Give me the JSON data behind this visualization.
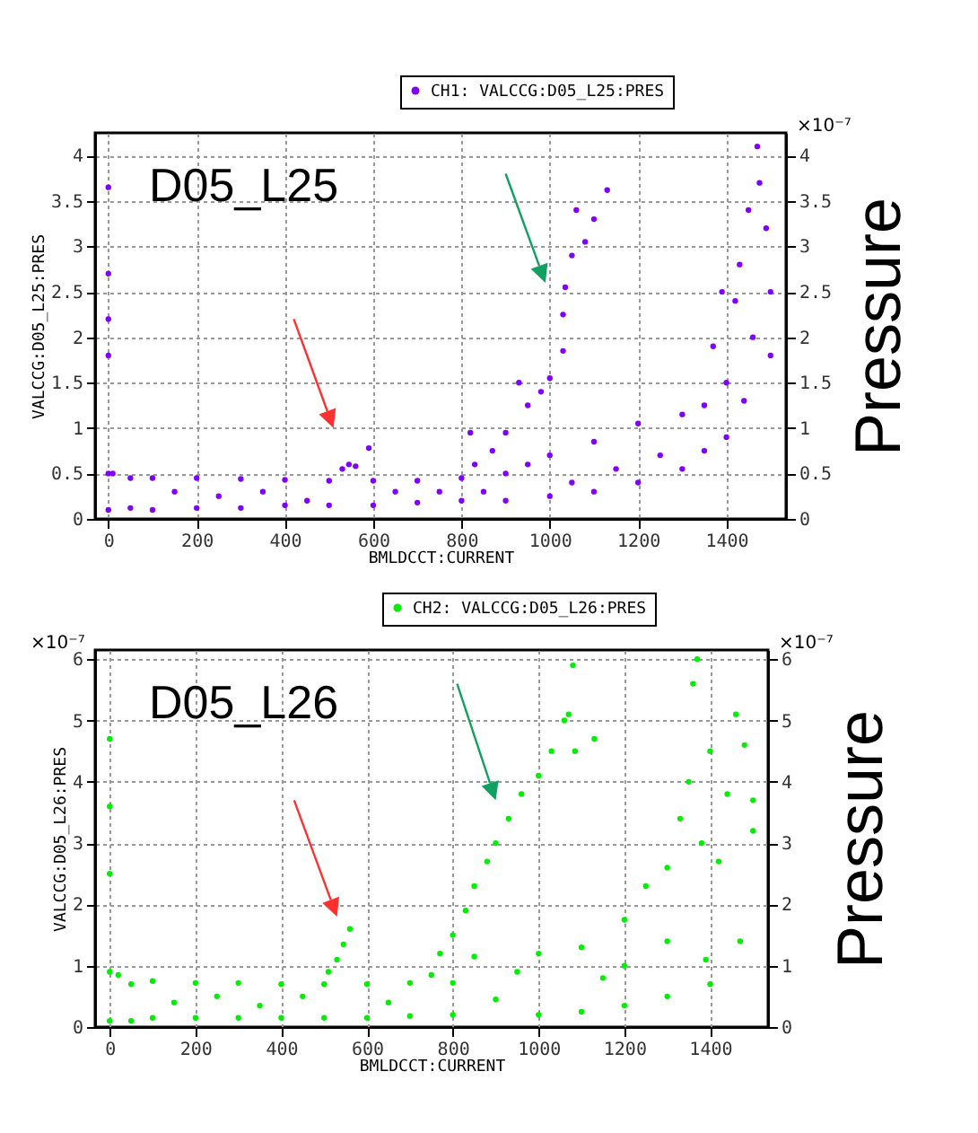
{
  "chart_data": [
    {
      "type": "scatter",
      "xlabel": "BMLDCCT:CURRENT",
      "ylabel": "VALCCG:D05_L25:PRES",
      "y2label": "Pressure",
      "annotations": [
        "D05_L25",
        "×10⁻⁷"
      ],
      "xlim": [
        -30,
        1535
      ],
      "xticks": [
        0,
        200,
        400,
        600,
        800,
        1000,
        1200,
        1400
      ],
      "ylim": [
        0,
        4.25
      ],
      "yticks": [
        0,
        0.5,
        1,
        1.5,
        2,
        2.5,
        3,
        3.5,
        4
      ],
      "y2lim": [
        0,
        4.25
      ],
      "y2ticks": [
        0,
        0.5,
        1,
        1.5,
        2,
        2.5,
        3,
        3.5,
        4
      ],
      "grid": true,
      "legend": "top right",
      "marker": "circle",
      "series": [
        {
          "name": "CH1: VALCCG:D05_L25:PRES",
          "color": "#8000ff",
          "x": [
            0,
            0,
            0,
            0,
            0,
            0,
            10,
            50,
            50,
            100,
            100,
            150,
            200,
            200,
            250,
            300,
            300,
            350,
            400,
            400,
            450,
            500,
            500,
            530,
            545,
            560,
            590,
            600,
            600,
            650,
            700,
            700,
            750,
            800,
            800,
            850,
            900,
            900,
            950,
            1000,
            1000,
            1050,
            1100,
            1100,
            1150,
            1200,
            1200,
            1250,
            1300,
            1300,
            1350,
            1350,
            1370,
            1390,
            1400,
            1400,
            1420,
            1430,
            1440,
            1450,
            1460,
            1470,
            1475,
            1490,
            1500,
            1500,
            820,
            830,
            870,
            900,
            930,
            950,
            980,
            1000,
            1030,
            1035,
            1050,
            1060,
            1080,
            1100,
            1130,
            1030
          ],
          "values": [
            0.1,
            0.5,
            1.8,
            3.65,
            2.7,
            2.2,
            0.5,
            0.45,
            0.12,
            0.45,
            0.1,
            0.3,
            0.45,
            0.12,
            0.25,
            0.44,
            0.12,
            0.3,
            0.43,
            0.15,
            0.2,
            0.42,
            0.15,
            0.55,
            0.6,
            0.58,
            0.78,
            0.42,
            0.15,
            0.3,
            0.42,
            0.18,
            0.3,
            0.45,
            0.2,
            0.3,
            0.5,
            0.2,
            0.6,
            0.7,
            0.25,
            0.4,
            0.85,
            0.3,
            0.55,
            1.05,
            0.4,
            0.7,
            1.15,
            0.55,
            1.25,
            0.75,
            1.9,
            2.5,
            1.5,
            0.9,
            2.4,
            2.8,
            1.3,
            3.4,
            2,
            4.1,
            3.7,
            3.2,
            2.5,
            1.8,
            0.95,
            0.6,
            0.75,
            0.95,
            1.5,
            1.25,
            1.4,
            1.55,
            1.85,
            2.55,
            2.9,
            3.4,
            3.05,
            3.3,
            3.62,
            2.25
          ]
        }
      ]
    },
    {
      "type": "scatter",
      "xlabel": "BMLDCCT:CURRENT",
      "ylabel": "VALCCG:D05_L26:PRES",
      "y2label": "Pressure",
      "annotations": [
        "D05_L26",
        "×10⁻⁷",
        "×10⁻⁷"
      ],
      "xlim": [
        -34,
        1535
      ],
      "xticks": [
        0,
        200,
        400,
        600,
        800,
        1000,
        1200,
        1400
      ],
      "ylim": [
        0,
        6.15
      ],
      "yticks": [
        0,
        1,
        2,
        3,
        4,
        5,
        6
      ],
      "y2lim": [
        0,
        6.15
      ],
      "y2ticks": [
        0,
        1,
        2,
        3,
        4,
        5,
        6
      ],
      "grid": true,
      "legend": "top right",
      "marker": "circle",
      "series": [
        {
          "name": "CH2: VALCCG:D05_L26:PRES",
          "color": "#00ee00",
          "x": [
            0,
            0,
            0,
            0,
            0,
            20,
            50,
            50,
            100,
            100,
            150,
            200,
            200,
            250,
            300,
            300,
            350,
            400,
            400,
            450,
            500,
            500,
            510,
            530,
            545,
            560,
            600,
            600,
            650,
            700,
            700,
            750,
            770,
            800,
            830,
            850,
            880,
            900,
            930,
            960,
            1000,
            1030,
            1060,
            1070,
            1085,
            1130,
            1080,
            800,
            800,
            850,
            900,
            950,
            1000,
            1000,
            1100,
            1100,
            1150,
            1200,
            1200,
            1200,
            1250,
            1300,
            1300,
            1300,
            1330,
            1350,
            1360,
            1370,
            1380,
            1390,
            1400,
            1400,
            1420,
            1440,
            1460,
            1470,
            1480,
            1500,
            1500
          ],
          "values": [
            0.1,
            0.9,
            2.5,
            3.6,
            4.7,
            0.85,
            0.7,
            0.1,
            0.75,
            0.15,
            0.4,
            0.72,
            0.15,
            0.5,
            0.72,
            0.15,
            0.35,
            0.7,
            0.15,
            0.5,
            0.7,
            0.15,
            0.9,
            1.1,
            1.35,
            1.6,
            0.7,
            0.15,
            0.4,
            0.72,
            0.18,
            0.85,
            1.2,
            1.5,
            1.9,
            2.3,
            2.7,
            3,
            3.4,
            3.8,
            4.1,
            4.5,
            5,
            5.1,
            4.5,
            4.7,
            5.9,
            0.72,
            0.2,
            1.15,
            0.45,
            0.9,
            1.2,
            0.2,
            1.3,
            0.25,
            0.8,
            1.75,
            0.35,
            1,
            2.3,
            2.6,
            1.4,
            0.5,
            3.4,
            4,
            5.6,
            6,
            3,
            1.1,
            4.5,
            0.7,
            2.7,
            3.8,
            5.1,
            1.4,
            4.6,
            3.7,
            3.2
          ]
        }
      ]
    }
  ]
}
